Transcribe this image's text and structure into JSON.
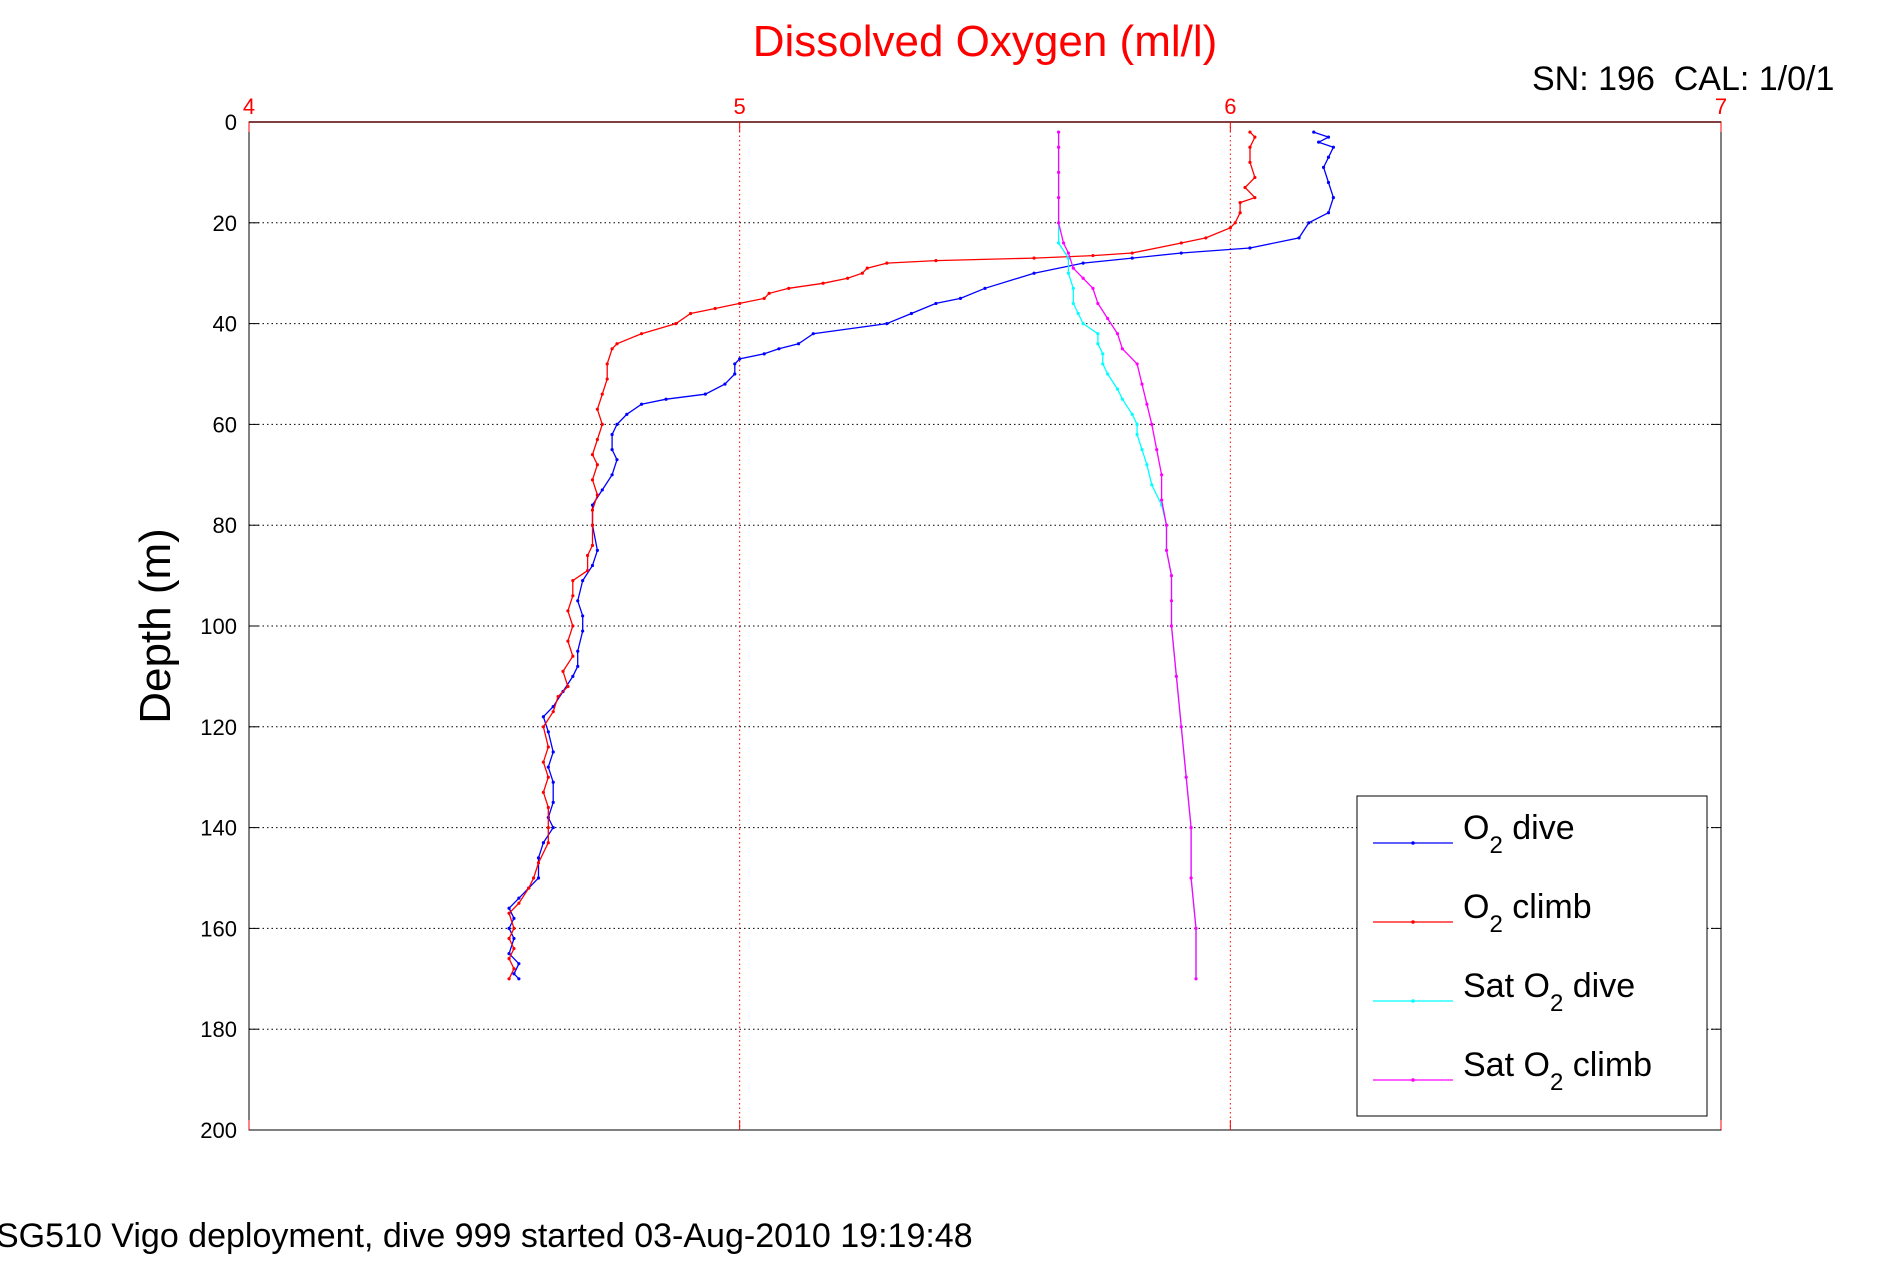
{
  "chart_data": {
    "type": "line",
    "title": "Dissolved Oxygen (ml/l)",
    "xlabel": "",
    "ylabel": "Depth (m)",
    "xlim": [
      4,
      7
    ],
    "ylim": [
      0,
      200
    ],
    "x_axis_position": "top",
    "y_reversed": true,
    "xticks": [
      4,
      5,
      6,
      7
    ],
    "yticks": [
      0,
      20,
      40,
      60,
      80,
      100,
      120,
      140,
      160,
      180,
      200
    ],
    "grid": true,
    "legend_position": "bottom-right",
    "annotation_top_right": "SN: 196  CAL: 1/0/1",
    "footer": "SG510 Vigo deployment, dive 999 started 03-Aug-2010 19:19:48",
    "colors": {
      "axis_x": "#ff0000",
      "title": "#ff0000",
      "axis_y": "#000000"
    },
    "series": [
      {
        "name_parts": [
          "O",
          "2",
          " dive"
        ],
        "color": "#0000ff",
        "points": [
          [
            6.17,
            2
          ],
          [
            6.2,
            3
          ],
          [
            6.18,
            4
          ],
          [
            6.21,
            5
          ],
          [
            6.2,
            7
          ],
          [
            6.19,
            9
          ],
          [
            6.2,
            12
          ],
          [
            6.21,
            15
          ],
          [
            6.2,
            18
          ],
          [
            6.16,
            20
          ],
          [
            6.14,
            23
          ],
          [
            6.04,
            25
          ],
          [
            5.9,
            26
          ],
          [
            5.8,
            27
          ],
          [
            5.7,
            28
          ],
          [
            5.6,
            30
          ],
          [
            5.5,
            33
          ],
          [
            5.45,
            35
          ],
          [
            5.4,
            36
          ],
          [
            5.35,
            38
          ],
          [
            5.3,
            40
          ],
          [
            5.15,
            42
          ],
          [
            5.12,
            44
          ],
          [
            5.08,
            45
          ],
          [
            5.05,
            46
          ],
          [
            5.0,
            47
          ],
          [
            4.99,
            48
          ],
          [
            4.99,
            50
          ],
          [
            4.97,
            52
          ],
          [
            4.93,
            54
          ],
          [
            4.85,
            55
          ],
          [
            4.8,
            56
          ],
          [
            4.77,
            58
          ],
          [
            4.75,
            60
          ],
          [
            4.74,
            62
          ],
          [
            4.74,
            65
          ],
          [
            4.75,
            67
          ],
          [
            4.74,
            70
          ],
          [
            4.72,
            73
          ],
          [
            4.7,
            76
          ],
          [
            4.7,
            80
          ],
          [
            4.71,
            85
          ],
          [
            4.7,
            88
          ],
          [
            4.68,
            91
          ],
          [
            4.67,
            95
          ],
          [
            4.68,
            98
          ],
          [
            4.68,
            101
          ],
          [
            4.67,
            105
          ],
          [
            4.67,
            108
          ],
          [
            4.66,
            110
          ],
          [
            4.64,
            113
          ],
          [
            4.62,
            116
          ],
          [
            4.6,
            118
          ],
          [
            4.61,
            121
          ],
          [
            4.62,
            125
          ],
          [
            4.61,
            128
          ],
          [
            4.62,
            131
          ],
          [
            4.62,
            135
          ],
          [
            4.61,
            138
          ],
          [
            4.62,
            140
          ],
          [
            4.6,
            143
          ],
          [
            4.59,
            146
          ],
          [
            4.59,
            150
          ],
          [
            4.57,
            152
          ],
          [
            4.55,
            154
          ],
          [
            4.53,
            156
          ],
          [
            4.54,
            158
          ],
          [
            4.53,
            160
          ],
          [
            4.54,
            162
          ],
          [
            4.53,
            165
          ],
          [
            4.55,
            167
          ],
          [
            4.54,
            169
          ],
          [
            4.55,
            170
          ]
        ]
      },
      {
        "name_parts": [
          "O",
          "2",
          " climb"
        ],
        "color": "#ff0000",
        "points": [
          [
            4.53,
            170
          ],
          [
            4.54,
            168
          ],
          [
            4.53,
            166
          ],
          [
            4.54,
            164
          ],
          [
            4.53,
            162
          ],
          [
            4.54,
            160
          ],
          [
            4.53,
            157
          ],
          [
            4.55,
            155
          ],
          [
            4.57,
            152
          ],
          [
            4.58,
            150
          ],
          [
            4.59,
            147
          ],
          [
            4.61,
            143
          ],
          [
            4.61,
            140
          ],
          [
            4.61,
            136
          ],
          [
            4.6,
            133
          ],
          [
            4.61,
            130
          ],
          [
            4.6,
            127
          ],
          [
            4.61,
            124
          ],
          [
            4.6,
            120
          ],
          [
            4.62,
            117
          ],
          [
            4.63,
            114
          ],
          [
            4.65,
            112
          ],
          [
            4.64,
            109
          ],
          [
            4.66,
            106
          ],
          [
            4.65,
            103
          ],
          [
            4.66,
            100
          ],
          [
            4.65,
            97
          ],
          [
            4.66,
            94
          ],
          [
            4.66,
            91
          ],
          [
            4.69,
            89
          ],
          [
            4.69,
            86
          ],
          [
            4.7,
            84
          ],
          [
            4.7,
            80
          ],
          [
            4.7,
            77
          ],
          [
            4.71,
            74
          ],
          [
            4.7,
            71
          ],
          [
            4.71,
            68
          ],
          [
            4.7,
            66
          ],
          [
            4.71,
            63
          ],
          [
            4.72,
            60
          ],
          [
            4.71,
            57
          ],
          [
            4.72,
            54
          ],
          [
            4.73,
            51
          ],
          [
            4.73,
            48
          ],
          [
            4.74,
            45
          ],
          [
            4.75,
            44
          ],
          [
            4.8,
            42
          ],
          [
            4.87,
            40
          ],
          [
            4.9,
            38
          ],
          [
            4.95,
            37
          ],
          [
            5.0,
            36
          ],
          [
            5.05,
            35
          ],
          [
            5.06,
            34
          ],
          [
            5.1,
            33
          ],
          [
            5.17,
            32
          ],
          [
            5.22,
            31
          ],
          [
            5.25,
            30
          ],
          [
            5.26,
            29
          ],
          [
            5.3,
            28
          ],
          [
            5.4,
            27.5
          ],
          [
            5.6,
            27
          ],
          [
            5.72,
            26.5
          ],
          [
            5.8,
            26
          ],
          [
            5.9,
            24
          ],
          [
            5.95,
            23
          ],
          [
            6.0,
            21
          ],
          [
            6.01,
            20
          ],
          [
            6.02,
            18
          ],
          [
            6.02,
            16
          ],
          [
            6.05,
            15
          ],
          [
            6.03,
            13
          ],
          [
            6.05,
            11
          ],
          [
            6.04,
            8
          ],
          [
            6.04,
            5
          ],
          [
            6.05,
            3
          ],
          [
            6.04,
            2
          ]
        ]
      },
      {
        "name_parts": [
          "Sat O",
          "2",
          " dive"
        ],
        "color": "#00ffff",
        "points": [
          [
            5.65,
            2
          ],
          [
            5.65,
            5
          ],
          [
            5.65,
            10
          ],
          [
            5.65,
            15
          ],
          [
            5.65,
            20
          ],
          [
            5.65,
            24
          ],
          [
            5.67,
            27
          ],
          [
            5.67,
            30
          ],
          [
            5.68,
            33
          ],
          [
            5.68,
            36
          ],
          [
            5.69,
            38
          ],
          [
            5.7,
            40
          ],
          [
            5.73,
            42
          ],
          [
            5.73,
            44
          ],
          [
            5.74,
            46
          ],
          [
            5.74,
            48
          ],
          [
            5.75,
            50
          ],
          [
            5.77,
            53
          ],
          [
            5.78,
            55
          ],
          [
            5.8,
            58
          ],
          [
            5.81,
            60
          ],
          [
            5.81,
            62
          ],
          [
            5.82,
            65
          ],
          [
            5.83,
            68
          ],
          [
            5.84,
            72
          ],
          [
            5.86,
            76
          ],
          [
            5.87,
            80
          ],
          [
            5.87,
            85
          ],
          [
            5.88,
            90
          ],
          [
            5.88,
            95
          ],
          [
            5.88,
            100
          ],
          [
            5.89,
            110
          ],
          [
            5.9,
            120
          ],
          [
            5.91,
            130
          ],
          [
            5.92,
            140
          ],
          [
            5.92,
            150
          ],
          [
            5.93,
            160
          ],
          [
            5.93,
            170
          ]
        ]
      },
      {
        "name_parts": [
          "Sat O",
          "2",
          " climb"
        ],
        "color": "#ff00ff",
        "points": [
          [
            5.93,
            170
          ],
          [
            5.93,
            160
          ],
          [
            5.92,
            150
          ],
          [
            5.92,
            140
          ],
          [
            5.91,
            130
          ],
          [
            5.9,
            120
          ],
          [
            5.89,
            110
          ],
          [
            5.88,
            100
          ],
          [
            5.88,
            95
          ],
          [
            5.88,
            90
          ],
          [
            5.87,
            85
          ],
          [
            5.87,
            80
          ],
          [
            5.86,
            75
          ],
          [
            5.86,
            70
          ],
          [
            5.85,
            65
          ],
          [
            5.84,
            60
          ],
          [
            5.83,
            56
          ],
          [
            5.82,
            52
          ],
          [
            5.81,
            48
          ],
          [
            5.78,
            45
          ],
          [
            5.77,
            42
          ],
          [
            5.75,
            39
          ],
          [
            5.73,
            36
          ],
          [
            5.72,
            33
          ],
          [
            5.7,
            31
          ],
          [
            5.68,
            29
          ],
          [
            5.67,
            26
          ],
          [
            5.66,
            24
          ],
          [
            5.65,
            20
          ],
          [
            5.65,
            15
          ],
          [
            5.65,
            10
          ],
          [
            5.65,
            5
          ],
          [
            5.65,
            2
          ]
        ]
      }
    ]
  }
}
